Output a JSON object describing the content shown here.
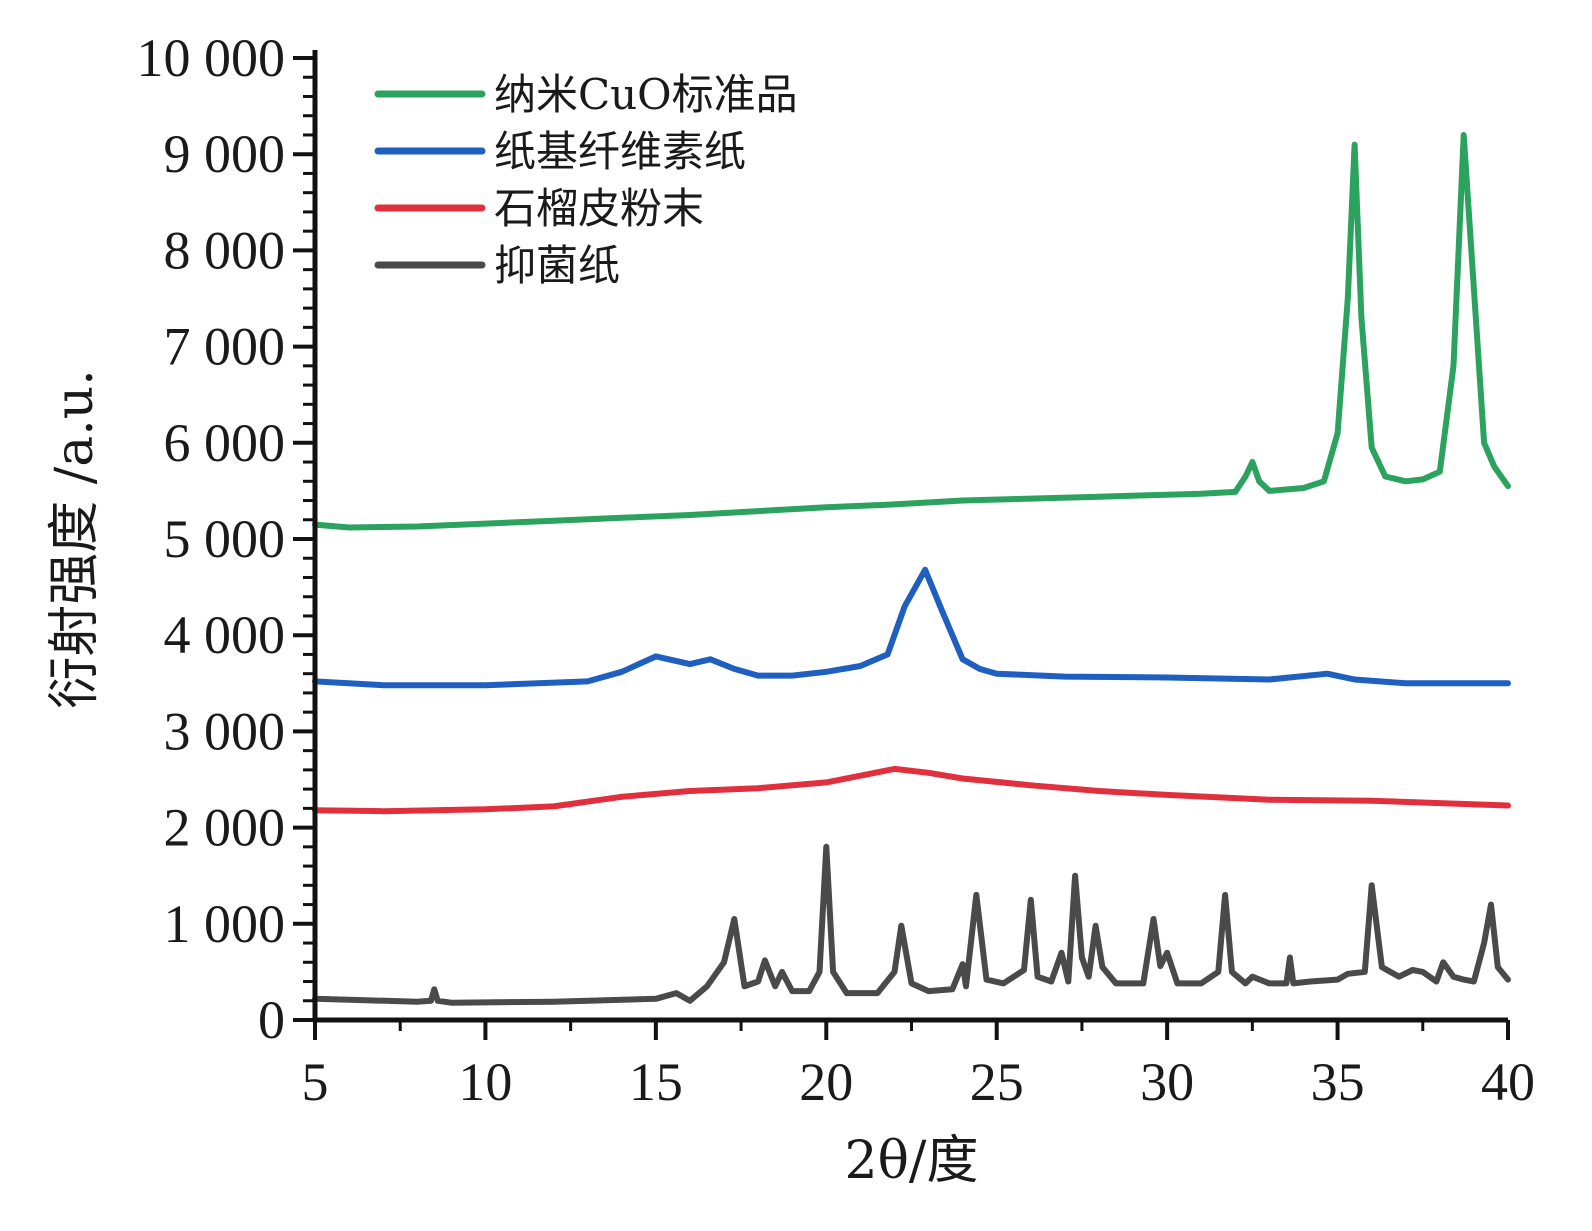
{
  "chart_data": {
    "type": "line",
    "title": "",
    "xlabel": "2θ/度",
    "ylabel": "衍射强度 /a.u.",
    "xlim": [
      5,
      40
    ],
    "ylim": [
      0,
      10000
    ],
    "x_ticks": [
      5,
      10,
      15,
      20,
      25,
      30,
      35,
      40
    ],
    "x_tick_labels": [
      "5",
      "10",
      "15",
      "20",
      "25",
      "30",
      "35",
      "40"
    ],
    "y_ticks": [
      0,
      1000,
      2000,
      3000,
      4000,
      5000,
      6000,
      7000,
      8000,
      9000,
      10000
    ],
    "y_tick_labels": [
      "0",
      "1 000",
      "2 000",
      "3 000",
      "4 000",
      "5 000",
      "6 000",
      "7 000",
      "8 000",
      "9 000",
      "10 000"
    ],
    "grid": false,
    "legend_position": "top-left",
    "series": [
      {
        "name": "纳米CuO标准品",
        "color": "#2ca25f",
        "x": [
          5,
          6,
          8,
          10,
          12,
          14,
          16,
          18,
          20,
          22,
          24,
          26,
          28,
          30,
          31,
          32,
          32.3,
          32.5,
          32.7,
          33,
          34,
          34.6,
          35,
          35.3,
          35.5,
          35.7,
          36,
          36.4,
          37,
          37.5,
          38,
          38.4,
          38.7,
          39,
          39.3,
          39.6,
          40
        ],
        "values": [
          5150,
          5120,
          5130,
          5160,
          5190,
          5220,
          5250,
          5290,
          5330,
          5360,
          5400,
          5420,
          5440,
          5460,
          5470,
          5490,
          5650,
          5800,
          5600,
          5500,
          5530,
          5600,
          6100,
          7500,
          9100,
          7300,
          5950,
          5650,
          5600,
          5620,
          5700,
          6800,
          9200,
          7600,
          6000,
          5750,
          5550
        ]
      },
      {
        "name": "纸基纤维素纸",
        "color": "#1f5fbf",
        "x": [
          5,
          7,
          10,
          13,
          14,
          15,
          16,
          16.6,
          17.3,
          18,
          19,
          20,
          21,
          21.8,
          22.3,
          22.9,
          23.4,
          24,
          24.5,
          25,
          27,
          30,
          33,
          34.7,
          35.5,
          37,
          40
        ],
        "values": [
          3520,
          3480,
          3480,
          3520,
          3620,
          3780,
          3700,
          3750,
          3650,
          3580,
          3580,
          3620,
          3680,
          3800,
          4300,
          4680,
          4250,
          3750,
          3650,
          3600,
          3570,
          3560,
          3540,
          3600,
          3540,
          3500,
          3500
        ]
      },
      {
        "name": "石榴皮粉末",
        "color": "#e0303e",
        "x": [
          5,
          7,
          10,
          12,
          14,
          16,
          18,
          20,
          21,
          22,
          23,
          24,
          26,
          28,
          30,
          33,
          36,
          40
        ],
        "values": [
          2180,
          2170,
          2190,
          2220,
          2320,
          2380,
          2410,
          2470,
          2540,
          2610,
          2570,
          2510,
          2440,
          2380,
          2340,
          2290,
          2280,
          2230
        ]
      },
      {
        "name": "抑菌纸",
        "color": "#4a4a4a",
        "x": [
          5,
          8,
          8.4,
          8.5,
          8.6,
          9,
          12,
          15,
          15.6,
          16,
          16.5,
          17,
          17.3,
          17.6,
          18,
          18.2,
          18.5,
          18.7,
          19,
          19.5,
          19.8,
          20,
          20.2,
          20.6,
          21.5,
          22,
          22.2,
          22.5,
          23,
          23.7,
          24,
          24.1,
          24.4,
          24.7,
          25.2,
          25.8,
          26,
          26.2,
          26.6,
          26.9,
          27.1,
          27.3,
          27.5,
          27.7,
          27.9,
          28.1,
          28.5,
          29.3,
          29.6,
          29.8,
          30,
          30.3,
          31,
          31.5,
          31.7,
          31.9,
          32.3,
          32.5,
          33,
          33.5,
          33.6,
          33.7,
          34.2,
          35,
          35.3,
          35.8,
          36,
          36.3,
          36.8,
          37.2,
          37.5,
          37.9,
          38.1,
          38.4,
          38.7,
          39,
          39.3,
          39.5,
          39.7,
          40
        ],
        "values": [
          220,
          190,
          200,
          320,
          200,
          180,
          190,
          220,
          280,
          200,
          350,
          600,
          1050,
          350,
          400,
          620,
          350,
          500,
          300,
          300,
          500,
          1800,
          500,
          280,
          280,
          500,
          980,
          380,
          300,
          320,
          580,
          350,
          1300,
          420,
          380,
          520,
          1250,
          450,
          400,
          700,
          400,
          1500,
          650,
          450,
          980,
          550,
          380,
          380,
          1050,
          560,
          700,
          380,
          380,
          500,
          1300,
          500,
          380,
          450,
          380,
          380,
          650,
          380,
          400,
          420,
          480,
          500,
          1400,
          550,
          450,
          520,
          500,
          400,
          600,
          450,
          420,
          400,
          800,
          1200,
          550,
          420
        ]
      }
    ]
  }
}
